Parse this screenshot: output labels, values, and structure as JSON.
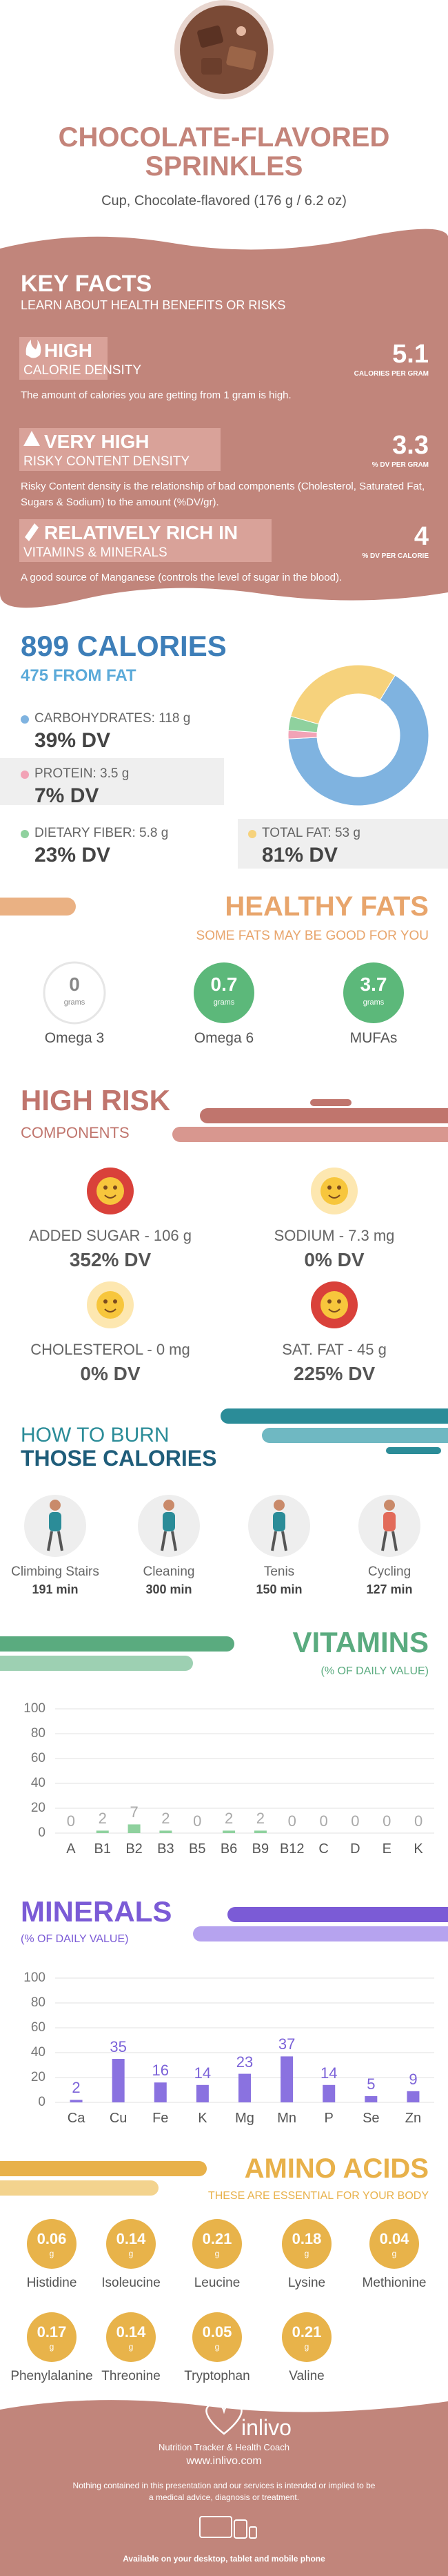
{
  "header": {
    "title": "CHOCOLATE-FLAVORED SPRINKLES",
    "subtitle": "Cup, Chocolate-flavored (176 g / 6.2 oz)"
  },
  "key_facts": {
    "title": "KEY FACTS",
    "subtitle": "LEARN ABOUT HEALTH BENEFITS OR RISKS",
    "items": [
      {
        "level": "HIGH",
        "label": "CALORIE DENSITY",
        "value": "5.1",
        "unit": "CALORIES PER GRAM",
        "text": "The amount of calories you are getting from 1 gram is high."
      },
      {
        "level": "VERY HIGH",
        "label": "RISKY CONTENT DENSITY",
        "value": "3.3",
        "unit": "% DV PER GRAM",
        "text": "Risky Content density is the relationship of bad components (Cholesterol, Saturated Fat, Sugars & Sodium) to the amount (%DV/gr)."
      },
      {
        "level": "RELATIVELY RICH IN",
        "label": "VITAMINS & MINERALS",
        "value": "4",
        "unit": "% DV PER CALORIE",
        "text": "A good source of Manganese (controls the level of sugar in the blood)."
      }
    ]
  },
  "calories": {
    "title": "899 CALORIES",
    "subtitle": "475 FROM FAT",
    "macros": [
      {
        "name": "CARBOHYDRATES:",
        "grams": 118,
        "unit": "g",
        "dv": "39% DV",
        "color": "#7fb3e0"
      },
      {
        "name": "PROTEIN:",
        "grams": 3.5,
        "unit": "g",
        "dv": "7% DV",
        "color": "#f2a3b6"
      },
      {
        "name": "DIETARY FIBER:",
        "grams": 5.8,
        "unit": "g",
        "dv": "23% DV",
        "color": "#8fd19e"
      },
      {
        "name": "TOTAL FAT:",
        "grams": 53,
        "unit": "g",
        "dv": "81% DV",
        "color": "#f6d27c"
      }
    ]
  },
  "healthy_fats": {
    "title": "HEALTHY FATS",
    "subtitle": "SOME FATS MAY BE GOOD FOR YOU",
    "unit": "grams",
    "items": [
      {
        "name": "Omega 3",
        "value": 0
      },
      {
        "name": "Omega 6",
        "value": 0.7
      },
      {
        "name": "MUFAs",
        "value": 3.7
      }
    ]
  },
  "high_risk": {
    "title": "HIGH RISK",
    "subtitle": "COMPONENTS",
    "items": [
      {
        "label": "ADDED SUGAR - 106 g",
        "dv": "352% DV"
      },
      {
        "label": "SODIUM - 7.3 mg",
        "dv": "0% DV"
      },
      {
        "label": "CHOLESTEROL - 0 mg",
        "dv": "0% DV"
      },
      {
        "label": "SAT. FAT - 45 g",
        "dv": "225% DV"
      }
    ]
  },
  "burn": {
    "title_line1": "HOW TO BURN",
    "title_line2": "THOSE CALORIES",
    "activities": [
      {
        "name": "Climbing Stairs",
        "time": "191 min"
      },
      {
        "name": "Cleaning",
        "time": "300 min"
      },
      {
        "name": "Tenis",
        "time": "150 min"
      },
      {
        "name": "Cycling",
        "time": "127 min"
      }
    ]
  },
  "chart_data": [
    {
      "type": "bar",
      "title": "VITAMINS",
      "subtitle": "(% OF DAILY VALUE)",
      "categories": [
        "A",
        "B1",
        "B2",
        "B3",
        "B5",
        "B6",
        "B9",
        "B12",
        "C",
        "D",
        "E",
        "K"
      ],
      "values": [
        0,
        2,
        7,
        2,
        0,
        2,
        2,
        0,
        0,
        0,
        0,
        0
      ],
      "color": "#8fd19e",
      "label_color": "#a9a9a9",
      "ylim": [
        0,
        100
      ],
      "yticks": [
        0,
        20,
        40,
        60,
        80,
        100
      ],
      "grid": true
    },
    {
      "type": "bar",
      "title": "MINERALS",
      "subtitle": "(% OF DAILY VALUE)",
      "categories": [
        "Ca",
        "Cu",
        "Fe",
        "K",
        "Mg",
        "Mn",
        "P",
        "Se",
        "Zn"
      ],
      "values": [
        2,
        35,
        16,
        14,
        23,
        37,
        14,
        5,
        9
      ],
      "color": "#8a72e0",
      "label_color": "#7b62d8",
      "ylim": [
        0,
        100
      ],
      "yticks": [
        0,
        20,
        40,
        60,
        80,
        100
      ],
      "grid": true
    }
  ],
  "amino_acids": {
    "title": "AMINO ACIDS",
    "subtitle": "THESE ARE ESSENTIAL FOR YOUR BODY",
    "unit": "g",
    "items": [
      {
        "name": "Histidine",
        "value": 0.06
      },
      {
        "name": "Isoleucine",
        "value": 0.14
      },
      {
        "name": "Leucine",
        "value": 0.21
      },
      {
        "name": "Lysine",
        "value": 0.18
      },
      {
        "name": "Methionine",
        "value": 0.04
      },
      {
        "name": "Phenylalanine",
        "value": 0.17
      },
      {
        "name": "Threonine",
        "value": 0.14
      },
      {
        "name": "Tryptophan",
        "value": 0.05
      },
      {
        "name": "Valine",
        "value": 0.21
      }
    ]
  },
  "footer": {
    "brand": "inlivo",
    "tagline": "Nutrition Tracker & Health Coach",
    "url": "www.inlivo.com",
    "disclaimer": "Nothing contained in this presentation and our services is intended or implied to be a medical advice, diagnosis or treatment.",
    "availability": "Available on your desktop, tablet and mobile phone"
  }
}
